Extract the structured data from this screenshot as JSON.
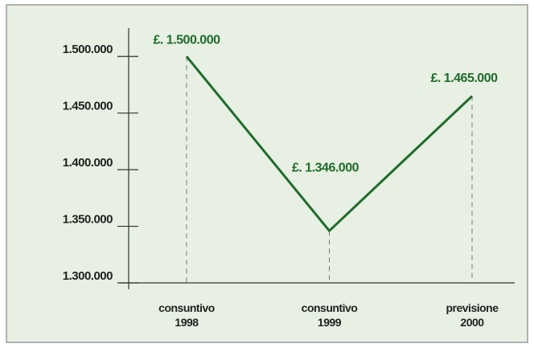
{
  "chart_data": {
    "type": "line",
    "categories": [
      "consuntivo 1998",
      "consuntivo 1999",
      "previsione 2000"
    ],
    "series": [
      {
        "name": null,
        "color": "#1f6b2c",
        "values": [
          1500000,
          1346000,
          1465000
        ],
        "value_labels": [
          "£. 1.500.000",
          "£. 1.346.000",
          "£. 1.465.000"
        ]
      }
    ],
    "ylim": [
      1300000,
      1525000
    ],
    "yticks": [
      {
        "value": 1300000,
        "label": "1.300.000"
      },
      {
        "value": 1350000,
        "label": "1.350.000"
      },
      {
        "value": 1400000,
        "label": "1.400.000"
      },
      {
        "value": 1450000,
        "label": "1.450.000"
      },
      {
        "value": 1500000,
        "label": "1.500.000"
      }
    ]
  }
}
